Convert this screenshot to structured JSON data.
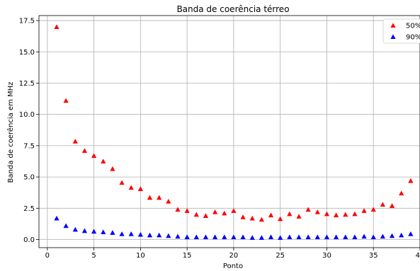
{
  "chart_data": {
    "type": "scatter",
    "title": "Banda de coerência térreo",
    "xlabel": "Ponto",
    "ylabel": "Banda de coerência em MHz",
    "xlim": [
      -0.9,
      40
    ],
    "ylim": [
      -0.65,
      17.9
    ],
    "xticks": [
      0,
      5,
      10,
      15,
      20,
      25,
      30,
      35,
      40
    ],
    "xtick_labels": [
      "0",
      "5",
      "10",
      "15",
      "20",
      "25",
      "30",
      "35",
      "40"
    ],
    "yticks": [
      0.0,
      2.5,
      5.0,
      7.5,
      10.0,
      12.5,
      15.0,
      17.5
    ],
    "ytick_labels": [
      "0.0",
      "2.5",
      "5.0",
      "7.5",
      "10.0",
      "12.5",
      "15.0",
      "17.5"
    ],
    "grid": true,
    "legend_position": "top-right",
    "marker": "triangle-up",
    "x": [
      1,
      2,
      3,
      4,
      5,
      6,
      7,
      8,
      9,
      10,
      11,
      12,
      13,
      14,
      15,
      16,
      17,
      18,
      19,
      20,
      21,
      22,
      23,
      24,
      25,
      26,
      27,
      28,
      29,
      30,
      31,
      32,
      33,
      34,
      35,
      36,
      37,
      38,
      39
    ],
    "series": [
      {
        "name": "50%",
        "color": "#ff0000",
        "values": [
          17.0,
          11.1,
          7.85,
          7.1,
          6.7,
          6.25,
          5.65,
          4.55,
          4.15,
          4.05,
          3.35,
          3.35,
          3.05,
          2.4,
          2.3,
          2.0,
          1.9,
          2.2,
          2.1,
          2.3,
          1.8,
          1.7,
          1.6,
          1.95,
          1.65,
          2.05,
          1.85,
          2.4,
          2.2,
          2.05,
          1.95,
          2.0,
          2.05,
          2.3,
          2.4,
          2.8,
          2.7,
          3.7,
          4.7
        ]
      },
      {
        "name": "90%",
        "color": "#0000ff",
        "values": [
          1.7,
          1.1,
          0.8,
          0.7,
          0.65,
          0.6,
          0.55,
          0.45,
          0.45,
          0.4,
          0.35,
          0.35,
          0.3,
          0.25,
          0.2,
          0.2,
          0.2,
          0.2,
          0.2,
          0.2,
          0.2,
          0.15,
          0.15,
          0.2,
          0.15,
          0.2,
          0.2,
          0.2,
          0.2,
          0.2,
          0.2,
          0.2,
          0.2,
          0.25,
          0.2,
          0.25,
          0.3,
          0.35,
          0.45
        ]
      }
    ]
  }
}
